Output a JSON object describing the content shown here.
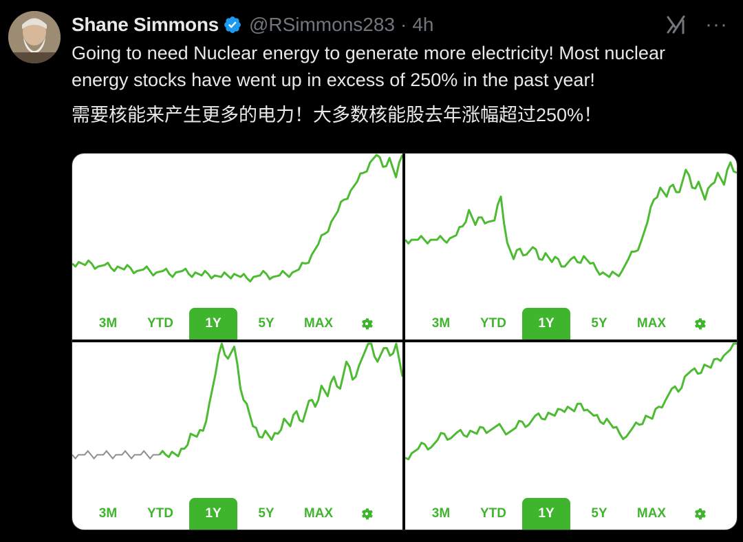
{
  "tweet": {
    "author_name": "Shane Simmons",
    "handle": "@RSimmons283",
    "separator": "·",
    "time": "4h",
    "text_en": "Going to need Nuclear energy to  generate more electricity! Most nuclear energy stocks have went up in excess of 250% in the past year!",
    "text_zh": "需要核能来产生更多的电力！大多数核能股去年涨幅超过250%！",
    "icons": {
      "avatar": "avatar",
      "verified": "verified-badge-icon",
      "grok": "grok-icon",
      "more": "more-icon"
    },
    "more_glyph": "···"
  },
  "colors": {
    "accent_green": "#3fb52d",
    "line_green": "#4cbb32",
    "muted": "#71767b",
    "verified": "#1d9bf0"
  },
  "charts": [
    {
      "range_buttons": [
        "3M",
        "YTD",
        "1Y",
        "5Y",
        "MAX"
      ],
      "selected": "1Y",
      "chart_data": {
        "type": "line",
        "title": "",
        "values": [
          0.27,
          0.28,
          0.26,
          0.27,
          0.25,
          0.26,
          0.24,
          0.25,
          0.23,
          0.24,
          0.22,
          0.23,
          0.22,
          0.21,
          0.22,
          0.2,
          0.21,
          0.22,
          0.2,
          0.21,
          0.19,
          0.2,
          0.19,
          0.18,
          0.19,
          0.2,
          0.18,
          0.17,
          0.18,
          0.19,
          0.2,
          0.18,
          0.19,
          0.2,
          0.21,
          0.23,
          0.27,
          0.33,
          0.4,
          0.47,
          0.55,
          0.62,
          0.7,
          0.76,
          0.82,
          0.88,
          0.95,
          1.0,
          0.92,
          0.98,
          0.85,
          1.0
        ]
      }
    },
    {
      "range_buttons": [
        "3M",
        "YTD",
        "1Y",
        "5Y",
        "MAX"
      ],
      "selected": "1Y",
      "chart_data": {
        "type": "line",
        "title": "",
        "values": [
          0.43,
          0.43,
          0.43,
          0.43,
          0.43,
          0.43,
          0.43,
          0.44,
          0.46,
          0.52,
          0.63,
          0.53,
          0.58,
          0.55,
          0.56,
          0.72,
          0.41,
          0.3,
          0.37,
          0.33,
          0.38,
          0.3,
          0.34,
          0.28,
          0.3,
          0.25,
          0.3,
          0.28,
          0.32,
          0.27,
          0.23,
          0.21,
          0.18,
          0.2,
          0.22,
          0.3,
          0.35,
          0.42,
          0.55,
          0.7,
          0.78,
          0.72,
          0.8,
          0.75,
          0.9,
          0.78,
          0.82,
          0.7,
          0.8,
          0.88,
          0.8,
          0.95,
          0.88
        ]
      }
    },
    {
      "range_buttons": [
        "3M",
        "YTD",
        "1Y",
        "5Y",
        "MAX"
      ],
      "selected": "1Y",
      "chart_data": {
        "type": "line",
        "title": "",
        "values": [
          0.26,
          0.26,
          0.26,
          0.26,
          0.26,
          0.26,
          0.26,
          0.26,
          0.26,
          0.26,
          0.26,
          0.26,
          0.26,
          0.26,
          0.26,
          0.26,
          0.28,
          0.25,
          0.3,
          0.4,
          0.38,
          0.42,
          0.6,
          0.8,
          1.0,
          0.9,
          0.98,
          0.7,
          0.6,
          0.45,
          0.38,
          0.42,
          0.36,
          0.4,
          0.5,
          0.45,
          0.55,
          0.48,
          0.62,
          0.58,
          0.72,
          0.65,
          0.78,
          0.7,
          0.88,
          0.76,
          0.85,
          0.95,
          1.0,
          0.88,
          0.97,
          0.92,
          1.0,
          0.78
        ]
      }
    },
    {
      "range_buttons": [
        "3M",
        "YTD",
        "1Y",
        "5Y",
        "MAX"
      ],
      "selected": "1Y",
      "chart_data": {
        "type": "line",
        "title": "",
        "values": [
          0.24,
          0.27,
          0.3,
          0.33,
          0.31,
          0.36,
          0.4,
          0.37,
          0.41,
          0.39,
          0.42,
          0.4,
          0.44,
          0.42,
          0.45,
          0.43,
          0.41,
          0.44,
          0.48,
          0.46,
          0.52,
          0.5,
          0.54,
          0.52,
          0.56,
          0.58,
          0.55,
          0.6,
          0.56,
          0.52,
          0.48,
          0.5,
          0.44,
          0.4,
          0.38,
          0.44,
          0.46,
          0.52,
          0.5,
          0.58,
          0.62,
          0.7,
          0.68,
          0.78,
          0.82,
          0.8,
          0.86,
          0.84,
          0.9,
          0.92,
          0.96,
          1.0
        ]
      }
    }
  ]
}
